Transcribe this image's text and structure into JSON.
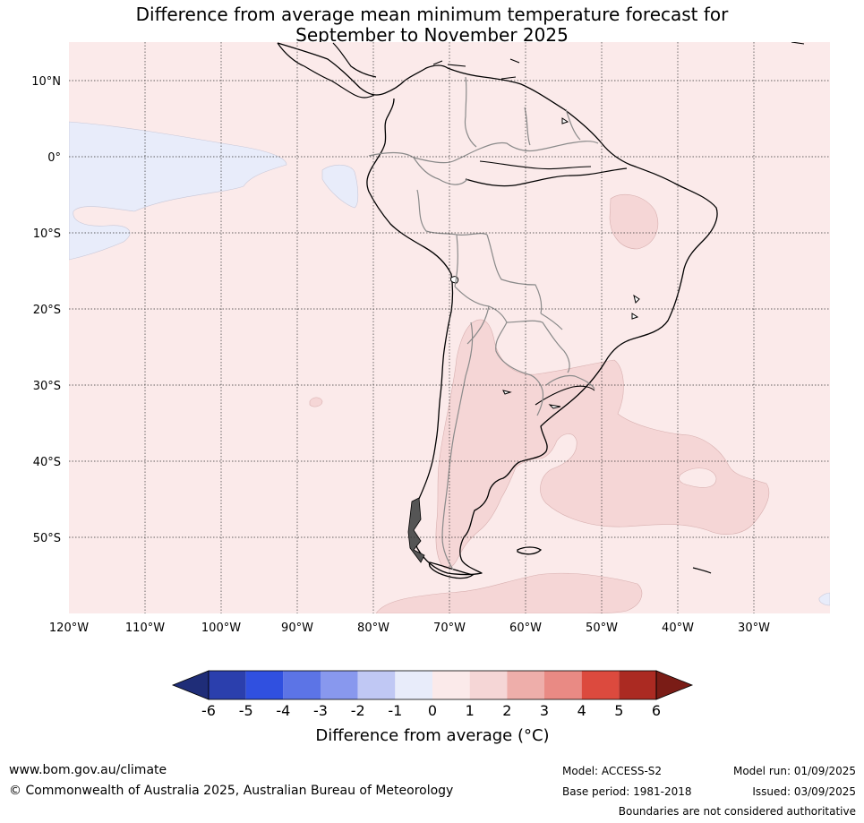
{
  "title_line1": "Difference from average mean minimum temperature forecast for",
  "title_line2": "September to November 2025",
  "map": {
    "lat_labels": [
      "10°N",
      "0°",
      "10°S",
      "20°S",
      "30°S",
      "40°S",
      "50°S"
    ],
    "lon_labels": [
      "120°W",
      "110°W",
      "100°W",
      "90°W",
      "80°W",
      "70°W",
      "60°W",
      "50°W",
      "40°W",
      "30°W"
    ]
  },
  "colorbar": {
    "ticks": [
      "-6",
      "-5",
      "-4",
      "-3",
      "-2",
      "-1",
      "0",
      "1",
      "2",
      "3",
      "4",
      "5",
      "6"
    ],
    "colors": [
      "#2b3fad",
      "#3050e0",
      "#5c74e6",
      "#8898ee",
      "#c0c8f4",
      "#e8ecfa",
      "#fbeaea",
      "#f5d6d6",
      "#eeaeaa",
      "#e98a84",
      "#dc4a3e",
      "#ab2a22"
    ],
    "under_color": "#1f2d78",
    "over_color": "#7a1c16",
    "label": "Difference from average (°C)"
  },
  "footer": {
    "url": "www.bom.gov.au/climate",
    "copyright": "© Commonwealth of Australia 2025, Australian Bureau of Meteorology",
    "model": "Model: ACCESS-S2",
    "base_period": "Base period: 1981-2018",
    "model_run": "Model run: 01/09/2025",
    "issued": "Issued: 03/09/2025",
    "disclaimer": "Boundaries are not considered authoritative"
  }
}
